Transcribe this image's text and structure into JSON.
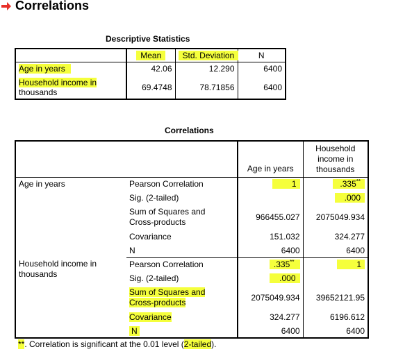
{
  "header": {
    "arrow_icon": "right-arrow-icon",
    "arrow_color": "#e8312a",
    "title": "Correlations"
  },
  "descriptive": {
    "caption": "Descriptive Statistics",
    "columns": [
      "",
      "Mean",
      "Std. Deviation",
      "N"
    ],
    "rows": [
      {
        "label": "Age in years",
        "mean": "42.06",
        "sd": "12.290",
        "n": "6400"
      },
      {
        "label_line1": "Household income in",
        "label_line2": "thousands",
        "mean": "69.4748",
        "sd": "78.71856",
        "n": "6400"
      }
    ]
  },
  "correlations": {
    "caption": "Correlations",
    "col_headers": {
      "age": "Age in years",
      "income_line1": "Household",
      "income_line2": "income in",
      "income_line3": "thousands"
    },
    "rows": [
      {
        "var": "Age in years",
        "stats": [
          {
            "label": "Pearson Correlation",
            "age": "1",
            "income": ".335",
            "income_sup": "**"
          },
          {
            "label": "Sig. (2-tailed)",
            "age": "",
            "income": ".000"
          },
          {
            "label_line1": "Sum of Squares and",
            "label_line2": "Cross-products",
            "age": "966455.027",
            "income": "2075049.934"
          },
          {
            "label": "Covariance",
            "age": "151.032",
            "income": "324.277"
          },
          {
            "label": "N",
            "age": "6400",
            "income": "6400"
          }
        ]
      },
      {
        "var_line1": "Household income in",
        "var_line2": "thousands",
        "stats": [
          {
            "label": "Pearson Correlation",
            "age": ".335",
            "age_sup": "**",
            "income": "1"
          },
          {
            "label": "Sig. (2-tailed)",
            "age": ".000",
            "income": ""
          },
          {
            "label_line1": "Sum of Squares and",
            "label_line2": "Cross-products",
            "age": "2075049.934",
            "income": "39652121.95"
          },
          {
            "label": "Covariance",
            "age": "324.277",
            "income": "6196.612"
          },
          {
            "label": "N",
            "age": "6400",
            "income": "6400"
          }
        ]
      }
    ],
    "footnote_marker": "**",
    "footnote_text": ". Correlation is significant at the 0.01 level (",
    "footnote_highlight": "2-tailed",
    "footnote_end": ")."
  },
  "highlight_color": "#f5ff3c"
}
